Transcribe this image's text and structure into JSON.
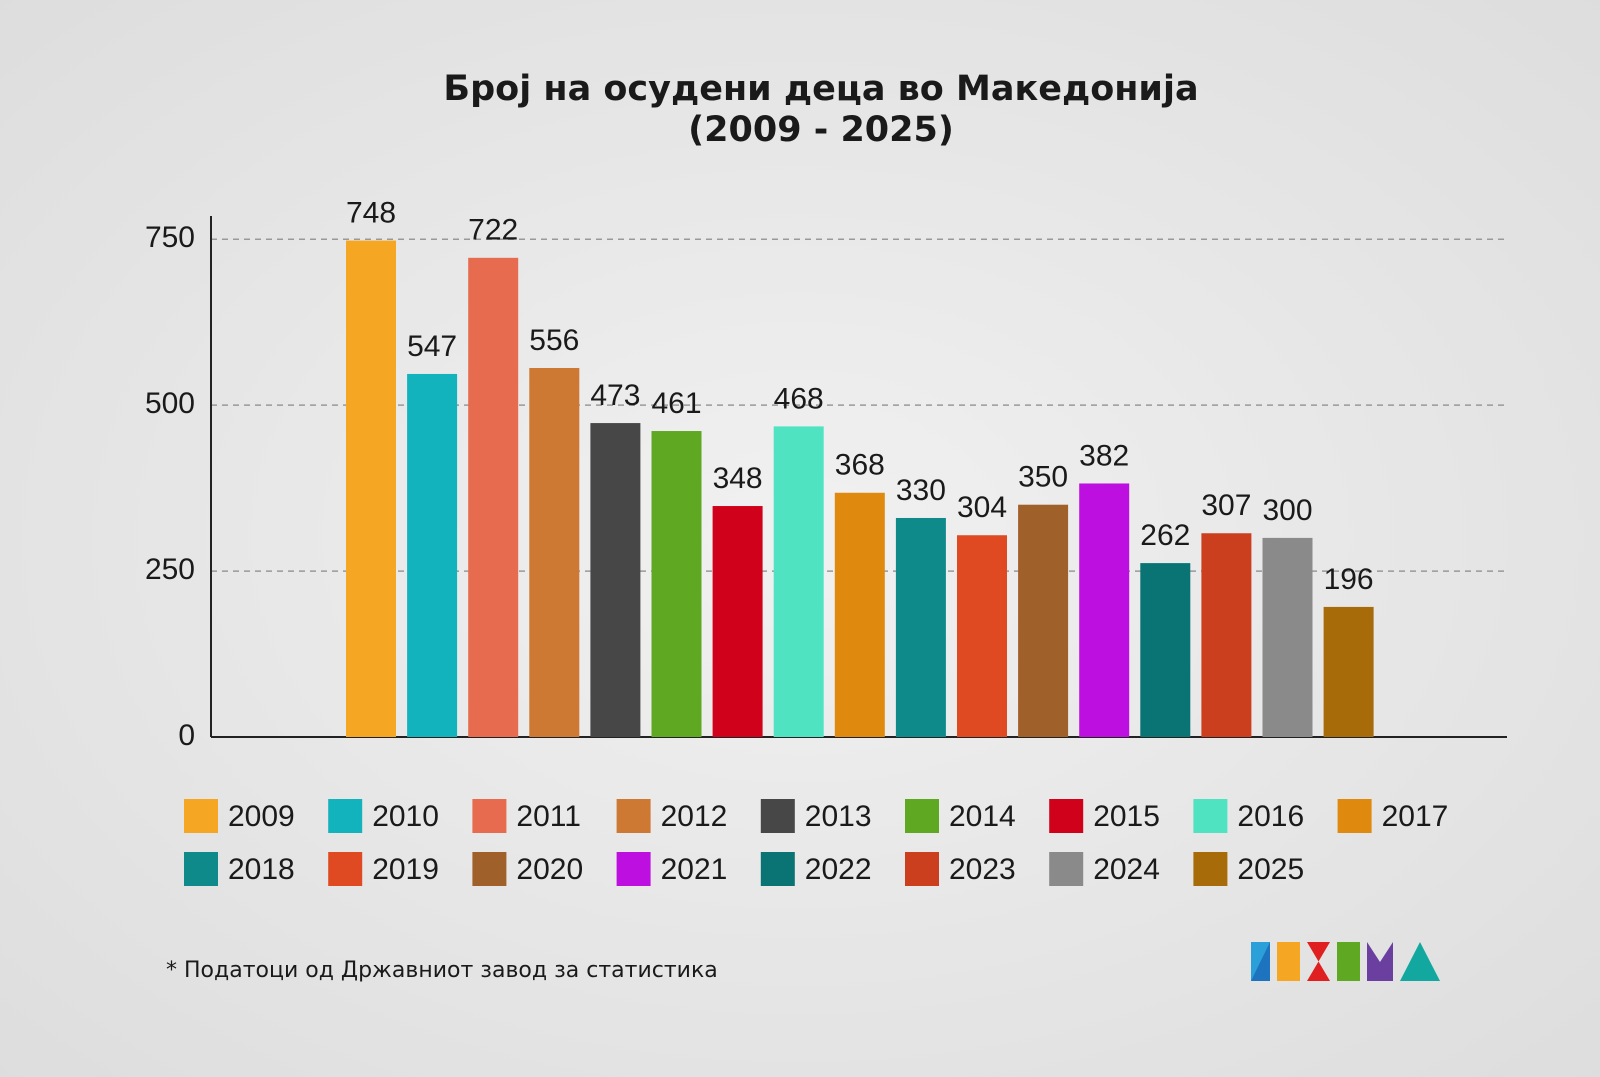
{
  "chart_data": {
    "type": "bar",
    "title": "Број на осудени деца во Македонија",
    "subtitle": "(2009 - 2025)",
    "categories": [
      "2009",
      "2010",
      "2011",
      "2012",
      "2013",
      "2014",
      "2015",
      "2016",
      "2017",
      "2018",
      "2019",
      "2020",
      "2021",
      "2022",
      "2023",
      "2024",
      "2025"
    ],
    "values": [
      748,
      547,
      722,
      556,
      473,
      461,
      348,
      468,
      368,
      330,
      304,
      350,
      382,
      262,
      307,
      300,
      196
    ],
    "colors": [
      "#f5a623",
      "#12b3bd",
      "#e76b4f",
      "#cd7833",
      "#474747",
      "#5ea822",
      "#d0021b",
      "#50e3c2",
      "#df8a0e",
      "#0e8a8a",
      "#e04a22",
      "#a0602a",
      "#bd10e0",
      "#0a7373",
      "#cc3f1e",
      "#8a8a8a",
      "#a86b0a"
    ],
    "ylim": [
      0,
      785
    ],
    "yticks": [
      0,
      250,
      500,
      750
    ],
    "grid": true,
    "note": "* Податоци од Државниот завод за статистика"
  }
}
